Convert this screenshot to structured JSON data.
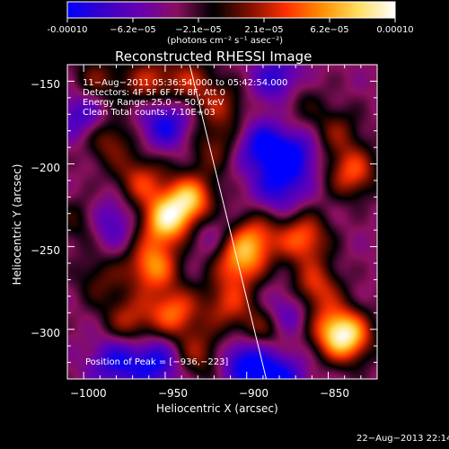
{
  "colorbar": {
    "tick_labels": [
      "-0.00010",
      "−6.2e−05",
      "−2.1e−05",
      "2.1e−05",
      "6.2e−05",
      "0.00010"
    ],
    "unit_label": "(photons cm⁻² s⁻¹ asec⁻²)",
    "colors": [
      "#0000ff",
      "#3b00c8",
      "#6a00b0",
      "#8a1060",
      "#000000",
      "#801000",
      "#ff3000",
      "#ff9000",
      "#ffe060",
      "#ffffff"
    ]
  },
  "chart_data": {
    "type": "heatmap",
    "title": "Reconstructed RHESSI Image",
    "xlabel": "Heliocentric X (arcsec)",
    "ylabel": "Heliocentric Y (arcsec)",
    "xlim": [
      -1010,
      -820
    ],
    "ylim": [
      -330,
      -140
    ],
    "xticks": [
      -1000,
      -950,
      -900,
      -850
    ],
    "yticks": [
      -150,
      -200,
      -250,
      -300
    ],
    "xtick_labels": [
      "−1000",
      "−950",
      "−900",
      "−850"
    ],
    "ytick_labels": [
      "−150",
      "−200",
      "−250",
      "−300"
    ],
    "annotations": [
      "11−Aug−2011 05:36:54.000 to 05:42:54.000",
      "Detectors: 4F 5F 6F 7F 8F, Att 0",
      "Energy Range: 25.0 − 50.0 keV",
      "Clean    Total counts: 7.10E+03"
    ],
    "peak_label": "Position of Peak = [−936,−223]",
    "peak": [
      -936,
      -223
    ],
    "limb_line": [
      [
        -935,
        -140
      ],
      [
        -888,
        -330
      ]
    ],
    "blobs": [
      {
        "x": -950,
        "y": -235,
        "v": 1.0
      },
      {
        "x": -935,
        "y": -222,
        "v": 1.0
      },
      {
        "x": -958,
        "y": -262,
        "v": 0.85
      },
      {
        "x": -945,
        "y": -290,
        "v": 0.75
      },
      {
        "x": -972,
        "y": -295,
        "v": 0.55
      },
      {
        "x": -965,
        "y": -210,
        "v": 0.6
      },
      {
        "x": -985,
        "y": -185,
        "v": 0.5
      },
      {
        "x": -992,
        "y": -150,
        "v": 0.45
      },
      {
        "x": -960,
        "y": -150,
        "v": 0.55
      },
      {
        "x": -935,
        "y": -150,
        "v": 0.5
      },
      {
        "x": -915,
        "y": -165,
        "v": 0.45
      },
      {
        "x": -920,
        "y": -190,
        "v": 0.4
      },
      {
        "x": -930,
        "y": -315,
        "v": 0.5
      },
      {
        "x": -990,
        "y": -270,
        "v": 0.35
      },
      {
        "x": -1000,
        "y": -235,
        "v": 0.4
      },
      {
        "x": -905,
        "y": -260,
        "v": 0.75
      },
      {
        "x": -895,
        "y": -245,
        "v": 0.7
      },
      {
        "x": -912,
        "y": -285,
        "v": 0.55
      },
      {
        "x": -890,
        "y": -300,
        "v": 0.5
      },
      {
        "x": -865,
        "y": -245,
        "v": 0.75
      },
      {
        "x": -858,
        "y": -275,
        "v": 0.65
      },
      {
        "x": -848,
        "y": -300,
        "v": 0.55
      },
      {
        "x": -838,
        "y": -305,
        "v": 0.95
      },
      {
        "x": -835,
        "y": -205,
        "v": 0.7
      },
      {
        "x": -845,
        "y": -180,
        "v": 0.4
      },
      {
        "x": -870,
        "y": -160,
        "v": 0.35
      },
      {
        "x": -880,
        "y": -215,
        "v": -0.5
      },
      {
        "x": -890,
        "y": -190,
        "v": -0.65
      },
      {
        "x": -870,
        "y": -195,
        "v": -0.55
      },
      {
        "x": -880,
        "y": -150,
        "v": -0.6
      },
      {
        "x": -950,
        "y": -175,
        "v": -0.6
      },
      {
        "x": -1000,
        "y": -170,
        "v": -0.5
      },
      {
        "x": -985,
        "y": -235,
        "v": -0.5
      },
      {
        "x": -980,
        "y": -320,
        "v": -0.55
      },
      {
        "x": -955,
        "y": -320,
        "v": -0.6
      },
      {
        "x": -900,
        "y": -320,
        "v": -0.7
      },
      {
        "x": -880,
        "y": -330,
        "v": -0.6
      },
      {
        "x": -925,
        "y": -240,
        "v": -0.25
      },
      {
        "x": -875,
        "y": -290,
        "v": -0.45
      }
    ]
  },
  "footer": {
    "timestamp": "22−Aug−2013 22:14"
  }
}
